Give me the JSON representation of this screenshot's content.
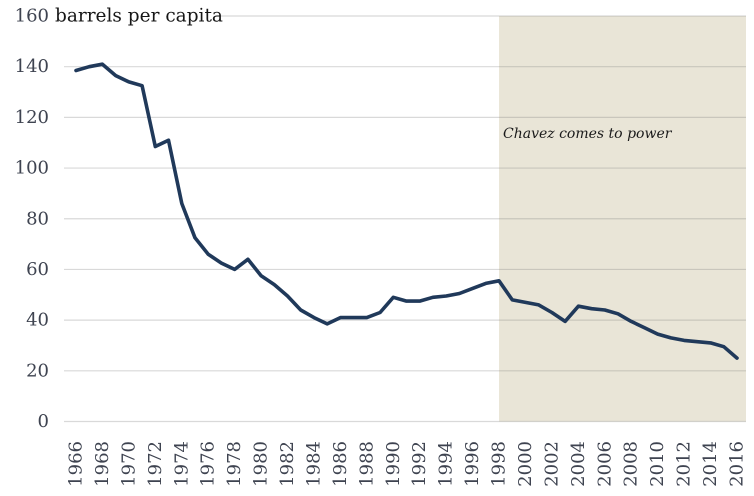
{
  "title": "barrels per capita",
  "annotation": {
    "text": "Chavez comes to power"
  },
  "colors": {
    "background": "#ffffff",
    "line": "#20395a",
    "shade": "#e9e5d7",
    "grid": "rgba(120,120,120,0.28)",
    "tick_label": "#3e4350",
    "title_text": "#161616",
    "annotation_text": "#1a1a1a"
  },
  "chart_data": {
    "type": "line",
    "title": "barrels per capita",
    "xlabel": "",
    "ylabel": "barrels per capita",
    "ylim": [
      0,
      160
    ],
    "yticks": [
      0,
      20,
      40,
      60,
      80,
      100,
      120,
      140,
      160
    ],
    "xticks": [
      1966,
      1968,
      1970,
      1972,
      1974,
      1976,
      1978,
      1980,
      1982,
      1984,
      1986,
      1988,
      1990,
      1992,
      1994,
      1996,
      1998,
      2000,
      2002,
      2004,
      2006,
      2008,
      2010,
      2012,
      2014,
      2016
    ],
    "grid": true,
    "legend": false,
    "x": [
      1966,
      1967,
      1968,
      1969,
      1970,
      1971,
      1972,
      1973,
      1974,
      1975,
      1976,
      1977,
      1978,
      1979,
      1980,
      1981,
      1982,
      1983,
      1984,
      1985,
      1986,
      1987,
      1988,
      1989,
      1990,
      1991,
      1992,
      1993,
      1994,
      1995,
      1996,
      1997,
      1998,
      1999,
      2000,
      2001,
      2002,
      2003,
      2004,
      2005,
      2006,
      2007,
      2008,
      2009,
      2010,
      2011,
      2012,
      2013,
      2014,
      2015,
      2016
    ],
    "series": [
      {
        "name": "barrels per capita",
        "values": [
          138.5,
          140,
          141,
          136.5,
          134,
          132.5,
          108.5,
          111,
          86,
          72.5,
          66,
          62.5,
          60,
          64,
          57.5,
          54,
          49.5,
          44,
          41,
          38.5,
          41,
          41,
          41,
          43,
          49,
          47.5,
          47.5,
          49,
          49.5,
          50.5,
          52.5,
          54.5,
          55.5,
          48,
          47,
          46,
          43,
          39.5,
          45.5,
          44.5,
          44,
          42.5,
          39.5,
          37,
          34.5,
          33,
          32,
          31.5,
          31,
          29.5,
          25
        ]
      }
    ],
    "shaded_region": {
      "from_year": 1998,
      "to_end": true,
      "label": "Chavez comes to power"
    },
    "annotations": [
      {
        "text": "Chavez comes to power",
        "x": 1998.5,
        "y": 113
      }
    ]
  }
}
